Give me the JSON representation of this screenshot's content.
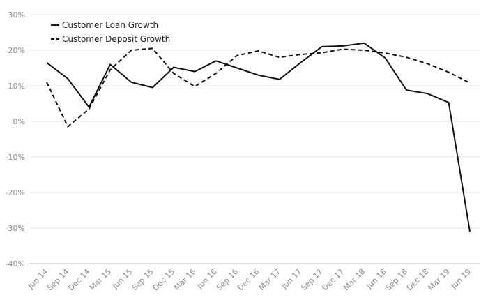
{
  "chart_data": {
    "type": "line",
    "title": "",
    "xlabel": "",
    "ylabel": "",
    "categories": [
      "Jun 14",
      "Sep 14",
      "Dec 14",
      "Mar 15",
      "Jun 15",
      "Sep 15",
      "Dec 15",
      "Mar 16",
      "Jun 16",
      "Sep 16",
      "Dec 16",
      "Mar 17",
      "Jun 17",
      "Sep 17",
      "Dec 17",
      "Mar 18",
      "Jun 18",
      "Sep 18",
      "Dec 18",
      "Mar 19",
      "Jun 19"
    ],
    "ylim": [
      -40,
      30
    ],
    "yticks": [
      30,
      20,
      10,
      0,
      -10,
      -20,
      -30,
      -40
    ],
    "ytick_labels": [
      "30%",
      "20%",
      "10%",
      "0%",
      "-10%",
      "-20%",
      "-30%",
      "-40%"
    ],
    "grid": true,
    "legend_position": "top-left",
    "series": [
      {
        "name": "Customer Loan Growth",
        "style": "solid",
        "color": "#111111",
        "values": [
          16.5,
          12.0,
          4.0,
          16.0,
          11.0,
          9.5,
          15.2,
          14.0,
          17.0,
          15.0,
          13.0,
          11.8,
          16.5,
          21.0,
          21.2,
          22.0,
          17.8,
          8.8,
          7.8,
          5.3,
          -31.0
        ]
      },
      {
        "name": "Customer Deposit Growth",
        "style": "dashed",
        "color": "#111111",
        "values": [
          11.0,
          -1.5,
          3.5,
          14.5,
          20.0,
          20.5,
          13.5,
          9.8,
          13.5,
          18.5,
          19.8,
          18.0,
          18.8,
          19.3,
          20.3,
          20.0,
          19.2,
          18.0,
          16.2,
          13.8,
          10.8
        ]
      }
    ]
  }
}
